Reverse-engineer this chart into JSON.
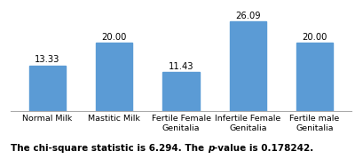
{
  "categories": [
    "Normal Milk",
    "Mastitic Milk",
    "Fertile Female\nGenitalia",
    "Infertile Female\nGenitalia",
    "Fertile male\nGenitalia"
  ],
  "values": [
    13.33,
    20.0,
    11.43,
    26.09,
    20.0
  ],
  "bar_color": "#5B9BD5",
  "bar_width": 0.55,
  "ylim": [
    0,
    30
  ],
  "value_labels": [
    "13.33",
    "20.00",
    "11.43",
    "26.09",
    "20.00"
  ],
  "background_color": "#ffffff",
  "label_fontsize": 6.8,
  "value_fontsize": 7.2,
  "footer_fontsize": 7.5
}
